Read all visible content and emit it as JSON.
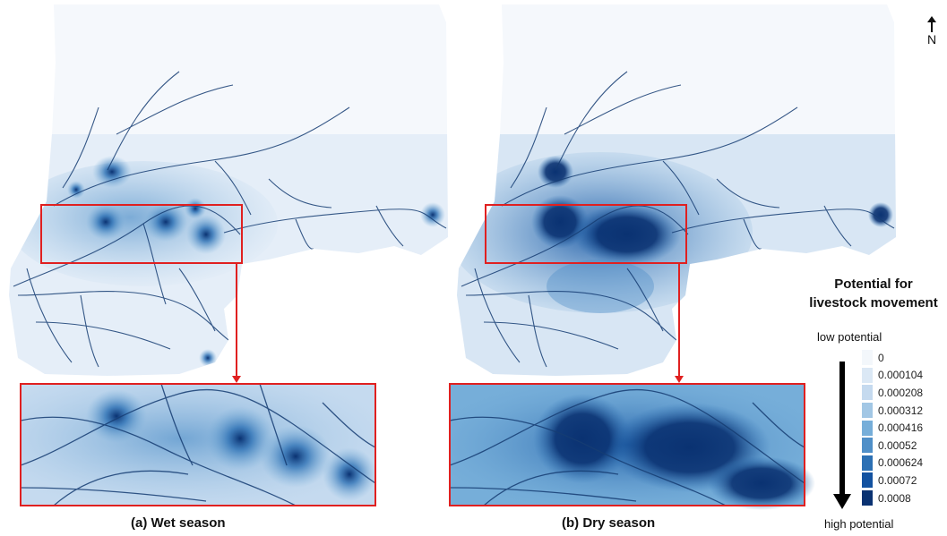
{
  "panels": [
    {
      "caption": "(a) Wet season",
      "season": "wet"
    },
    {
      "caption": "(b) Dry season",
      "season": "dry"
    }
  ],
  "north_label": "N",
  "legend": {
    "title_line1": "Potential for",
    "title_line2": "livestock movement",
    "low_label": "low potential",
    "high_label": "high potential",
    "classes": [
      {
        "label": "0",
        "color": "#f3f7fb"
      },
      {
        "label": "0.000104",
        "color": "#dbe8f5"
      },
      {
        "label": "0.000208",
        "color": "#c5daef"
      },
      {
        "label": "0.000312",
        "color": "#a2c7e5"
      },
      {
        "label": "0.000416",
        "color": "#76aed9"
      },
      {
        "label": "0.00052",
        "color": "#4f8fc8"
      },
      {
        "label": "0.000624",
        "color": "#2c70b4"
      },
      {
        "label": "0.00072",
        "color": "#1352a0"
      },
      {
        "label": "0.0008",
        "color": "#0a3272"
      }
    ]
  },
  "colors": {
    "highlight_box": "#e02020",
    "road": "#163d73"
  }
}
